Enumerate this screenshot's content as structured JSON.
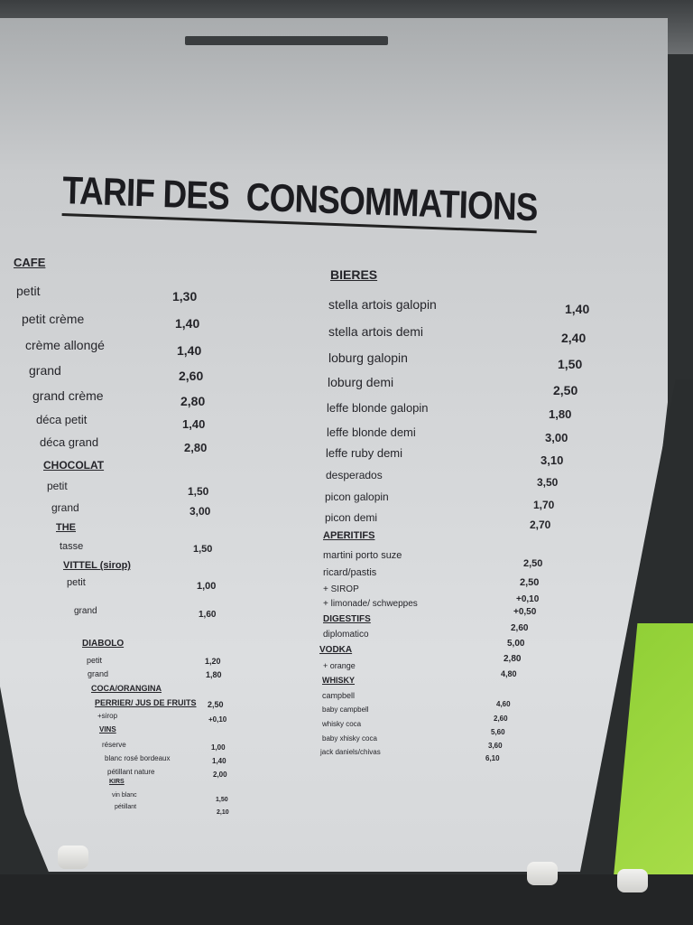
{
  "title": "TARIF DES  CONSOMMATIONS",
  "left_column": [
    {
      "label": "CAFE",
      "heading": true
    },
    {
      "label": "petit",
      "price": "1,30"
    },
    {
      "label": "petit crème",
      "price": "1,40"
    },
    {
      "label": "crème allongé",
      "price": "1,40"
    },
    {
      "label": "grand",
      "price": "2,60"
    },
    {
      "label": "grand crème",
      "price": "2,80"
    },
    {
      "label": "déca petit",
      "price": "1,40"
    },
    {
      "label": "déca grand",
      "price": "2,80"
    },
    {
      "label": "CHOCOLAT",
      "heading": true
    },
    {
      "label": "petit",
      "price": "1,50"
    },
    {
      "label": "grand",
      "price": "3,00"
    },
    {
      "label": "THE",
      "heading": true
    },
    {
      "label": "tasse",
      "price": "1,50"
    },
    {
      "label": "VITTEL (sirop)",
      "heading": true
    },
    {
      "label": "petit",
      "price": "1,00"
    },
    {
      "label": "grand",
      "price": "1,60"
    },
    {
      "label": "DIABOLO",
      "heading": true
    },
    {
      "label": "petit",
      "price": "1,20"
    },
    {
      "label": "grand",
      "price": "1,80"
    },
    {
      "label": "COCA/ORANGINA",
      "heading": true
    },
    {
      "label": "PERRIER/ JUS DE FRUITS",
      "heading": true,
      "price": "2,50"
    },
    {
      "label": "+sirop",
      "price": "+0,10"
    },
    {
      "label": "VINS",
      "heading": true
    },
    {
      "label": "réserve",
      "price": "1,00"
    },
    {
      "label": "blanc rosé bordeaux",
      "price": "1,40"
    },
    {
      "label": "pétillant nature",
      "price": "2,00"
    },
    {
      "label": "KIRS",
      "heading": true
    },
    {
      "label": "vin blanc",
      "price": "1,50"
    },
    {
      "label": "pétillant",
      "price": "2,10"
    }
  ],
  "right_column": {
    "labels": [
      "BIERES",
      "stella artois galopin",
      "stella artois demi",
      "loburg galopin",
      "loburg demi",
      "leffe blonde galopin",
      "leffe blonde demi",
      "leffe ruby demi",
      "desperados",
      "picon galopin",
      "picon demi",
      "APERITIFS",
      "martini porto suze",
      "ricard/pastis",
      "+ SIROP",
      "+ limonade/ schweppes",
      "DIGESTIFS",
      "diplomatico",
      "VODKA",
      "+ orange",
      "WHISKY",
      "campbell",
      "baby campbell",
      "whisky coca",
      "baby xhisky coca",
      "jack daniels/chivas"
    ],
    "headings": [
      "BIERES",
      "APERITIFS",
      "DIGESTIFS",
      "VODKA",
      "WHISKY"
    ],
    "prices": [
      "1,40",
      "2,40",
      "1,50",
      "2,50",
      "1,80",
      "3,00",
      "3,10",
      "3,50",
      "1,70",
      "2,70",
      "2,50",
      "2,50",
      "+0,10",
      "+0,50",
      "2,60",
      "5,00",
      "2,80",
      "4,80",
      "4,60",
      "2,60",
      "5,60",
      "3,60",
      "6,10"
    ]
  },
  "colors": {
    "paper": "#d3d5d7",
    "ink": "#25252a",
    "green_panel": "#9ad13a"
  }
}
